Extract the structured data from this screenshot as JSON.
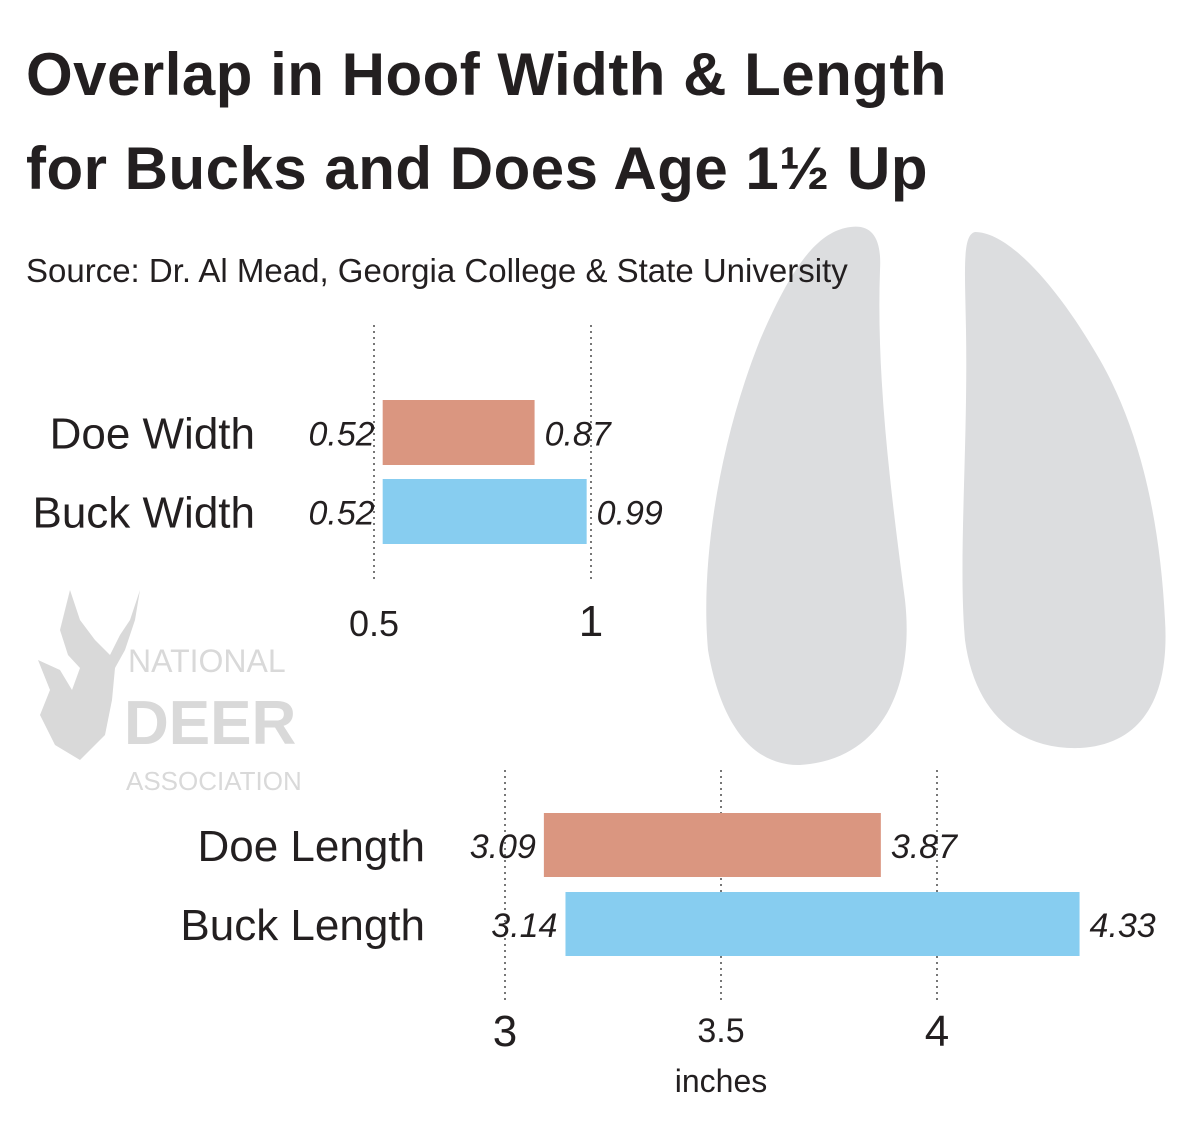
{
  "title_line1": "Overlap in Hoof Width & Length",
  "title_line2": "for Bucks and Does Age 1½ Up",
  "source": "Source: Dr. Al Mead, Georgia College & State University",
  "logo": {
    "line1": "NATIONAL",
    "line2": "DEER",
    "line3": "ASSOCIATION"
  },
  "colors": {
    "doe": "#DA9680",
    "buck": "#87CDF0",
    "hoof": "#DCDDDF",
    "logo": "#D9D9D9"
  },
  "chart_data": [
    {
      "type": "bar",
      "orientation": "horizontal-range",
      "categories": [
        "Doe Width",
        "Buck Width"
      ],
      "ranges": [
        [
          0.52,
          0.87
        ],
        [
          0.52,
          0.99
        ]
      ],
      "low_labels": [
        "0.52",
        "0.52"
      ],
      "high_labels": [
        "0.87",
        "0.99"
      ],
      "xticks": [
        0.5,
        1
      ],
      "xtick_labels": [
        "0.5",
        "1"
      ],
      "xlim": [
        0.5,
        1
      ],
      "grid": "dotted vertical at ticks"
    },
    {
      "type": "bar",
      "orientation": "horizontal-range",
      "categories": [
        "Doe Length",
        "Buck Length"
      ],
      "ranges": [
        [
          3.09,
          3.87
        ],
        [
          3.14,
          4.33
        ]
      ],
      "low_labels": [
        "3.09",
        "3.14"
      ],
      "high_labels": [
        "3.87",
        "4.33"
      ],
      "xticks": [
        3,
        3.5,
        4
      ],
      "xtick_labels": [
        "3",
        "3.5",
        "4"
      ],
      "xlabel": "inches",
      "xlim": [
        3,
        4
      ],
      "grid": "dotted vertical at ticks"
    }
  ]
}
